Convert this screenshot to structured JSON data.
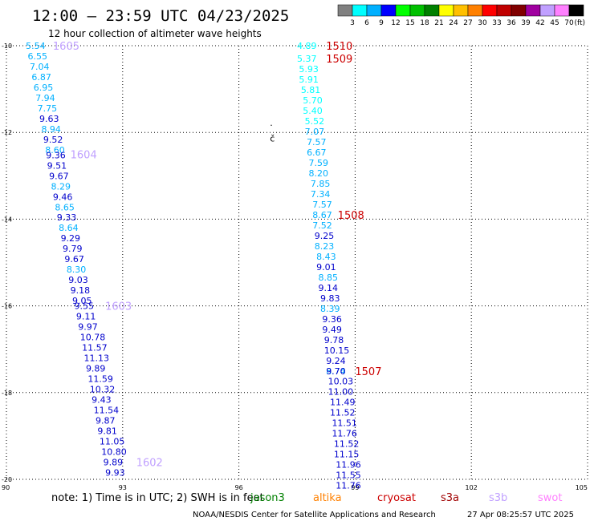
{
  "header": {
    "title": "12:00 – 23:59 UTC 04/23/2025",
    "subtitle": "12 hour collection of altimeter wave heights"
  },
  "color_scale": {
    "labels": [
      "3",
      "6",
      "9",
      "12",
      "15",
      "18",
      "21",
      "24",
      "27",
      "30",
      "33",
      "36",
      "39",
      "42",
      "45",
      "70"
    ],
    "unit": "(ft)",
    "colors": [
      "#808080",
      "#00ffff",
      "#00b0ff",
      "#0000ff",
      "#00ff00",
      "#00c000",
      "#008000",
      "#ffff00",
      "#ffc000",
      "#ff8000",
      "#ff0000",
      "#c00000",
      "#800000",
      "#a000a0",
      "#c0a0ff",
      "#ff80ff",
      "#000000"
    ]
  },
  "chart_data": {
    "type": "scatter",
    "xlim": [
      90,
      105
    ],
    "ylim": [
      -20,
      -10
    ],
    "xticks": [
      "90",
      "93",
      "96",
      "99",
      "102",
      "105"
    ],
    "yticks": [
      "-10",
      "-12",
      "-14",
      "-16",
      "-18",
      "-20"
    ],
    "grid": true,
    "tracks": [
      {
        "points": [
          {
            "lon": 90.5,
            "lat": -10.0,
            "swh": "5.54",
            "color": "#00b0ff"
          },
          {
            "lon": 90.55,
            "lat": -10.24,
            "swh": "6.55",
            "color": "#00b0ff"
          },
          {
            "lon": 90.6,
            "lat": -10.48,
            "swh": "7.04",
            "color": "#00b0ff"
          },
          {
            "lon": 90.65,
            "lat": -10.72,
            "swh": "6.87",
            "color": "#00b0ff"
          },
          {
            "lon": 90.7,
            "lat": -10.96,
            "swh": "6.95",
            "color": "#00b0ff"
          },
          {
            "lon": 90.75,
            "lat": -11.2,
            "swh": "7.94",
            "color": "#00b0ff"
          },
          {
            "lon": 90.8,
            "lat": -11.44,
            "swh": "7.75",
            "color": "#00b0ff"
          },
          {
            "lon": 90.85,
            "lat": -11.68,
            "swh": "9.63",
            "color": "#0000cc"
          },
          {
            "lon": 90.9,
            "lat": -11.92,
            "swh": "8.94",
            "color": "#00b0ff"
          },
          {
            "lon": 90.95,
            "lat": -12.16,
            "swh": "9.52",
            "color": "#0000cc"
          },
          {
            "lon": 91.0,
            "lat": -12.4,
            "swh": "8.60",
            "color": "#00b0ff"
          },
          {
            "lon": 91.02,
            "lat": -12.52,
            "swh": "9.36",
            "color": "#0000cc"
          },
          {
            "lon": 91.05,
            "lat": -12.76,
            "swh": "9.51",
            "color": "#0000cc"
          },
          {
            "lon": 91.1,
            "lat": -13.0,
            "swh": "9.67",
            "color": "#0000cc"
          },
          {
            "lon": 91.15,
            "lat": -13.24,
            "swh": "8.29",
            "color": "#00b0ff"
          },
          {
            "lon": 91.2,
            "lat": -13.48,
            "swh": "9.46",
            "color": "#0000cc"
          },
          {
            "lon": 91.25,
            "lat": -13.72,
            "swh": "8.65",
            "color": "#00b0ff"
          },
          {
            "lon": 91.3,
            "lat": -13.96,
            "swh": "9.33",
            "color": "#0000cc"
          },
          {
            "lon": 91.35,
            "lat": -14.2,
            "swh": "8.64",
            "color": "#00b0ff"
          },
          {
            "lon": 91.4,
            "lat": -14.44,
            "swh": "9.29",
            "color": "#0000cc"
          },
          {
            "lon": 91.45,
            "lat": -14.68,
            "swh": "9.79",
            "color": "#0000cc"
          },
          {
            "lon": 91.5,
            "lat": -14.92,
            "swh": "9.67",
            "color": "#0000cc"
          },
          {
            "lon": 91.55,
            "lat": -15.16,
            "swh": "8.30",
            "color": "#00b0ff"
          },
          {
            "lon": 91.6,
            "lat": -15.4,
            "swh": "9.03",
            "color": "#0000cc"
          },
          {
            "lon": 91.65,
            "lat": -15.64,
            "swh": "9.18",
            "color": "#0000cc"
          },
          {
            "lon": 91.7,
            "lat": -15.88,
            "swh": "9.05",
            "color": "#0000cc"
          },
          {
            "lon": 91.75,
            "lat": -16.0,
            "swh": "9.55",
            "color": "#0000cc"
          },
          {
            "lon": 91.8,
            "lat": -16.24,
            "swh": "9.11",
            "color": "#0000cc"
          },
          {
            "lon": 91.85,
            "lat": -16.48,
            "swh": "9.97",
            "color": "#0000cc"
          },
          {
            "lon": 91.9,
            "lat": -16.72,
            "swh": "10.78",
            "color": "#0000cc"
          },
          {
            "lon": 91.95,
            "lat": -16.96,
            "swh": "11.57",
            "color": "#0000cc"
          },
          {
            "lon": 92.0,
            "lat": -17.2,
            "swh": "11.13",
            "color": "#0000cc"
          },
          {
            "lon": 92.05,
            "lat": -17.44,
            "swh": "9.89",
            "color": "#0000cc"
          },
          {
            "lon": 92.1,
            "lat": -17.68,
            "swh": "11.59",
            "color": "#0000cc"
          },
          {
            "lon": 92.15,
            "lat": -17.92,
            "swh": "10.32",
            "color": "#0000cc"
          },
          {
            "lon": 92.2,
            "lat": -18.16,
            "swh": "9.43",
            "color": "#0000cc"
          },
          {
            "lon": 92.25,
            "lat": -18.4,
            "swh": "11.54",
            "color": "#0000cc"
          },
          {
            "lon": 92.3,
            "lat": -18.64,
            "swh": "9.87",
            "color": "#0000cc"
          },
          {
            "lon": 92.35,
            "lat": -18.88,
            "swh": "9.81",
            "color": "#0000cc"
          },
          {
            "lon": 92.4,
            "lat": -19.12,
            "swh": "11.05",
            "color": "#0000cc"
          },
          {
            "lon": 92.45,
            "lat": -19.36,
            "swh": "10.80",
            "color": "#0000cc"
          },
          {
            "lon": 92.5,
            "lat": -19.6,
            "swh": "9.89",
            "color": "#0000cc"
          },
          {
            "lon": 92.55,
            "lat": -19.84,
            "swh": "9.93",
            "color": "#0000cc"
          }
        ],
        "times": [
          {
            "label": "1605",
            "lon": 91.2,
            "lat": -10.0,
            "color": "#c0a0ff"
          },
          {
            "label": "1604",
            "lon": 91.65,
            "lat": -12.5,
            "color": "#c0a0ff"
          },
          {
            "label": "1603",
            "lon": 92.55,
            "lat": -16.0,
            "color": "#c0a0ff"
          },
          {
            "label": "1602",
            "lon": 93.35,
            "lat": -19.6,
            "color": "#c0a0ff"
          }
        ]
      },
      {
        "points": [
          {
            "lon": 97.5,
            "lat": -10.0,
            "swh": "4.89",
            "color": "#00ffff"
          },
          {
            "lon": 97.5,
            "lat": -10.3,
            "swh": "5.37",
            "color": "#00ffff"
          },
          {
            "lon": 97.55,
            "lat": -10.54,
            "swh": "5.93",
            "color": "#00ffff"
          },
          {
            "lon": 97.55,
            "lat": -10.78,
            "swh": "5.91",
            "color": "#00ffff"
          },
          {
            "lon": 97.6,
            "lat": -11.02,
            "swh": "5.81",
            "color": "#00ffff"
          },
          {
            "lon": 97.65,
            "lat": -11.26,
            "swh": "5.70",
            "color": "#00ffff"
          },
          {
            "lon": 97.65,
            "lat": -11.5,
            "swh": "5.40",
            "color": "#00ffff"
          },
          {
            "lon": 97.7,
            "lat": -11.74,
            "swh": "5.52",
            "color": "#00ffff"
          },
          {
            "lon": 97.7,
            "lat": -11.98,
            "swh": "7.07",
            "color": "#00b0ff"
          },
          {
            "lon": 97.75,
            "lat": -12.22,
            "swh": "7.57",
            "color": "#00b0ff"
          },
          {
            "lon": 97.75,
            "lat": -12.46,
            "swh": "6.67",
            "color": "#00b0ff"
          },
          {
            "lon": 97.8,
            "lat": -12.7,
            "swh": "7.59",
            "color": "#00b0ff"
          },
          {
            "lon": 97.8,
            "lat": -12.94,
            "swh": "8.20",
            "color": "#00b0ff"
          },
          {
            "lon": 97.85,
            "lat": -13.18,
            "swh": "7.85",
            "color": "#00b0ff"
          },
          {
            "lon": 97.85,
            "lat": -13.42,
            "swh": "7.34",
            "color": "#00b0ff"
          },
          {
            "lon": 97.9,
            "lat": -13.66,
            "swh": "7.57",
            "color": "#00b0ff"
          },
          {
            "lon": 97.9,
            "lat": -13.9,
            "swh": "8.67",
            "color": "#00b0ff"
          },
          {
            "lon": 97.9,
            "lat": -14.14,
            "swh": "7.52",
            "color": "#00b0ff"
          },
          {
            "lon": 97.95,
            "lat": -14.38,
            "swh": "9.25",
            "color": "#0000cc"
          },
          {
            "lon": 97.95,
            "lat": -14.62,
            "swh": "8.23",
            "color": "#00b0ff"
          },
          {
            "lon": 98.0,
            "lat": -14.86,
            "swh": "8.43",
            "color": "#00b0ff"
          },
          {
            "lon": 98.0,
            "lat": -15.1,
            "swh": "9.01",
            "color": "#0000cc"
          },
          {
            "lon": 98.05,
            "lat": -15.34,
            "swh": "8.85",
            "color": "#00b0ff"
          },
          {
            "lon": 98.05,
            "lat": -15.58,
            "swh": "9.14",
            "color": "#0000cc"
          },
          {
            "lon": 98.1,
            "lat": -15.82,
            "swh": "9.83",
            "color": "#0000cc"
          },
          {
            "lon": 98.1,
            "lat": -16.06,
            "swh": "8.39",
            "color": "#00b0ff"
          },
          {
            "lon": 98.15,
            "lat": -16.3,
            "swh": "9.36",
            "color": "#0000cc"
          },
          {
            "lon": 98.15,
            "lat": -16.54,
            "swh": "9.49",
            "color": "#0000cc"
          },
          {
            "lon": 98.2,
            "lat": -16.78,
            "swh": "9.78",
            "color": "#0000cc"
          },
          {
            "lon": 98.2,
            "lat": -17.02,
            "swh": "10.15",
            "color": "#0000cc"
          },
          {
            "lon": 98.25,
            "lat": -17.26,
            "swh": "9.24",
            "color": "#0000cc"
          },
          {
            "lon": 98.25,
            "lat": -17.5,
            "swh": "8.74",
            "color": "#00b0ff"
          },
          {
            "lon": 98.25,
            "lat": -17.5,
            "swh": "9.70",
            "color": "#0000cc"
          },
          {
            "lon": 98.3,
            "lat": -17.74,
            "swh": "10.03",
            "color": "#0000cc"
          },
          {
            "lon": 98.3,
            "lat": -17.98,
            "swh": "11.00",
            "color": "#0000cc"
          },
          {
            "lon": 98.35,
            "lat": -18.22,
            "swh": "11.49",
            "color": "#0000cc"
          },
          {
            "lon": 98.35,
            "lat": -18.46,
            "swh": "11.52",
            "color": "#0000cc"
          },
          {
            "lon": 98.4,
            "lat": -18.7,
            "swh": "11.51",
            "color": "#0000cc"
          },
          {
            "lon": 98.4,
            "lat": -18.94,
            "swh": "11.76",
            "color": "#0000cc"
          },
          {
            "lon": 98.45,
            "lat": -19.18,
            "swh": "11.52",
            "color": "#0000cc"
          },
          {
            "lon": 98.45,
            "lat": -19.42,
            "swh": "11.15",
            "color": "#0000cc"
          },
          {
            "lon": 98.5,
            "lat": -19.66,
            "swh": "11.96",
            "color": "#0000cc"
          },
          {
            "lon": 98.5,
            "lat": -19.9,
            "swh": "11.55",
            "color": "#0000cc"
          },
          {
            "lon": 98.5,
            "lat": -20.14,
            "swh": "11.76",
            "color": "#0000cc"
          }
        ],
        "times": [
          {
            "label": "1510",
            "lon": 98.25,
            "lat": -10.0,
            "color": "#cc0000"
          },
          {
            "label": "1509",
            "lon": 98.25,
            "lat": -10.3,
            "color": "#cc0000"
          },
          {
            "label": "1508",
            "lon": 98.55,
            "lat": -13.9,
            "color": "#cc0000"
          },
          {
            "lon": 99.0,
            "lat": -17.5,
            "label": "1507",
            "color": "#cc0000"
          }
        ]
      }
    ],
    "markers": [
      {
        "symbol": "·",
        "lon": 96.8,
        "lat": -11.85,
        "color": "#000000"
      },
      {
        "symbol": "č",
        "lon": 96.8,
        "lat": -12.15,
        "color": "#000000"
      }
    ]
  },
  "note": {
    "text": "note:  1) Time is in UTC; 2) SWH is in feet"
  },
  "satellites": [
    {
      "name": "jason3",
      "color": "#008000"
    },
    {
      "name": "altika",
      "color": "#ff8000"
    },
    {
      "name": "cryosat",
      "color": "#cc0000"
    },
    {
      "name": "s3a",
      "color": "#a00000"
    },
    {
      "name": "s3b",
      "color": "#c0a0ff"
    },
    {
      "name": "swot",
      "color": "#ff80ff"
    }
  ],
  "footer": {
    "credit": "NOAA/NESDIS Center for Satellite Applications and Research",
    "timestamp": "27 Apr 08:25:57 UTC 2025"
  }
}
